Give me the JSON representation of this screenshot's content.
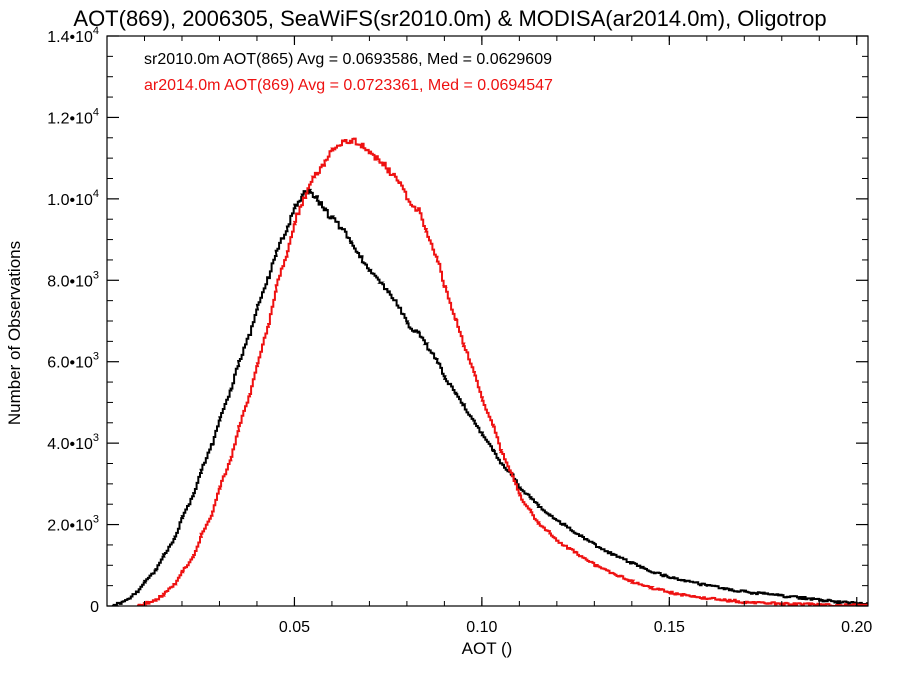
{
  "chart_data": {
    "type": "line",
    "title": "AOT(869), 2006305, SeaWiFS(sr2010.0m) & MODISA(ar2014.0m), Oligotrop",
    "xlabel": "AOT ()",
    "ylabel": "Number of Observations",
    "xlim": [
      0.0,
      0.203
    ],
    "ylim": [
      0,
      14000
    ],
    "x_ticks": [
      {
        "value": 0.05,
        "label": "0.05"
      },
      {
        "value": 0.1,
        "label": "0.10"
      },
      {
        "value": 0.15,
        "label": "0.15"
      },
      {
        "value": 0.2,
        "label": "0.20"
      }
    ],
    "y_ticks": [
      {
        "value": 0,
        "label": "0",
        "exp": ""
      },
      {
        "value": 2000,
        "label": "2.0•10",
        "exp": "3"
      },
      {
        "value": 4000,
        "label": "4.0•10",
        "exp": "3"
      },
      {
        "value": 6000,
        "label": "6.0•10",
        "exp": "3"
      },
      {
        "value": 8000,
        "label": "8.0•10",
        "exp": "3"
      },
      {
        "value": 10000,
        "label": "1.0•10",
        "exp": "4"
      },
      {
        "value": 12000,
        "label": "1.2•10",
        "exp": "4"
      },
      {
        "value": 14000,
        "label": "1.4•10",
        "exp": "4"
      }
    ],
    "legend_placement": "top-left",
    "grid": false,
    "series": [
      {
        "legend": "sr2010.0m AOT(865) Avg = 0.0693586, Med = 0.0629609",
        "color": "#000000",
        "x": [
          0.0013,
          0.003,
          0.005,
          0.008,
          0.01,
          0.013,
          0.015,
          0.018,
          0.02,
          0.023,
          0.025,
          0.028,
          0.03,
          0.033,
          0.035,
          0.038,
          0.04,
          0.043,
          0.045,
          0.048,
          0.05,
          0.052,
          0.054,
          0.056,
          0.058,
          0.06,
          0.063,
          0.065,
          0.068,
          0.07,
          0.073,
          0.075,
          0.078,
          0.08,
          0.083,
          0.085,
          0.088,
          0.09,
          0.093,
          0.095,
          0.098,
          0.1,
          0.103,
          0.105,
          0.108,
          0.11,
          0.113,
          0.115,
          0.118,
          0.12,
          0.125,
          0.13,
          0.135,
          0.14,
          0.145,
          0.15,
          0.155,
          0.16,
          0.165,
          0.17,
          0.175,
          0.18,
          0.185,
          0.19,
          0.195,
          0.2,
          0.203
        ],
        "y": [
          0,
          50,
          150,
          350,
          600,
          900,
          1250,
          1700,
          2200,
          2750,
          3350,
          4000,
          4650,
          5350,
          6000,
          6700,
          7400,
          8100,
          8700,
          9300,
          9800,
          10100,
          10200,
          10000,
          9700,
          9500,
          9200,
          8900,
          8500,
          8200,
          7900,
          7700,
          7300,
          6900,
          6700,
          6400,
          6000,
          5600,
          5200,
          4900,
          4500,
          4200,
          3800,
          3500,
          3200,
          2900,
          2650,
          2450,
          2250,
          2100,
          1800,
          1500,
          1250,
          1050,
          850,
          700,
          600,
          500,
          420,
          350,
          300,
          250,
          200,
          150,
          100,
          60,
          40
        ]
      },
      {
        "legend": "ar2014.0m AOT(869) Avg = 0.0723361, Med = 0.0694547",
        "color": "#ee1111",
        "x": [
          0.008,
          0.01,
          0.013,
          0.015,
          0.018,
          0.02,
          0.023,
          0.025,
          0.028,
          0.03,
          0.033,
          0.035,
          0.038,
          0.04,
          0.043,
          0.045,
          0.048,
          0.05,
          0.053,
          0.055,
          0.058,
          0.06,
          0.063,
          0.065,
          0.068,
          0.07,
          0.073,
          0.075,
          0.078,
          0.08,
          0.083,
          0.085,
          0.088,
          0.09,
          0.093,
          0.095,
          0.098,
          0.1,
          0.103,
          0.105,
          0.108,
          0.11,
          0.113,
          0.115,
          0.118,
          0.12,
          0.125,
          0.13,
          0.135,
          0.14,
          0.145,
          0.15,
          0.155,
          0.16,
          0.165,
          0.17,
          0.175,
          0.18,
          0.185,
          0.19,
          0.195,
          0.2,
          0.203
        ],
        "y": [
          0,
          60,
          150,
          300,
          550,
          850,
          1250,
          1750,
          2300,
          2950,
          3650,
          4400,
          5200,
          6000,
          6950,
          7850,
          8700,
          9500,
          10150,
          10550,
          10900,
          11200,
          11400,
          11450,
          11300,
          11100,
          10900,
          10700,
          10400,
          10000,
          9700,
          9200,
          8500,
          7800,
          7000,
          6400,
          5700,
          5050,
          4400,
          3800,
          3200,
          2700,
          2300,
          2000,
          1800,
          1600,
          1300,
          1000,
          800,
          600,
          450,
          330,
          250,
          190,
          140,
          100,
          75,
          55,
          40,
          30,
          20,
          15,
          10
        ]
      }
    ]
  }
}
